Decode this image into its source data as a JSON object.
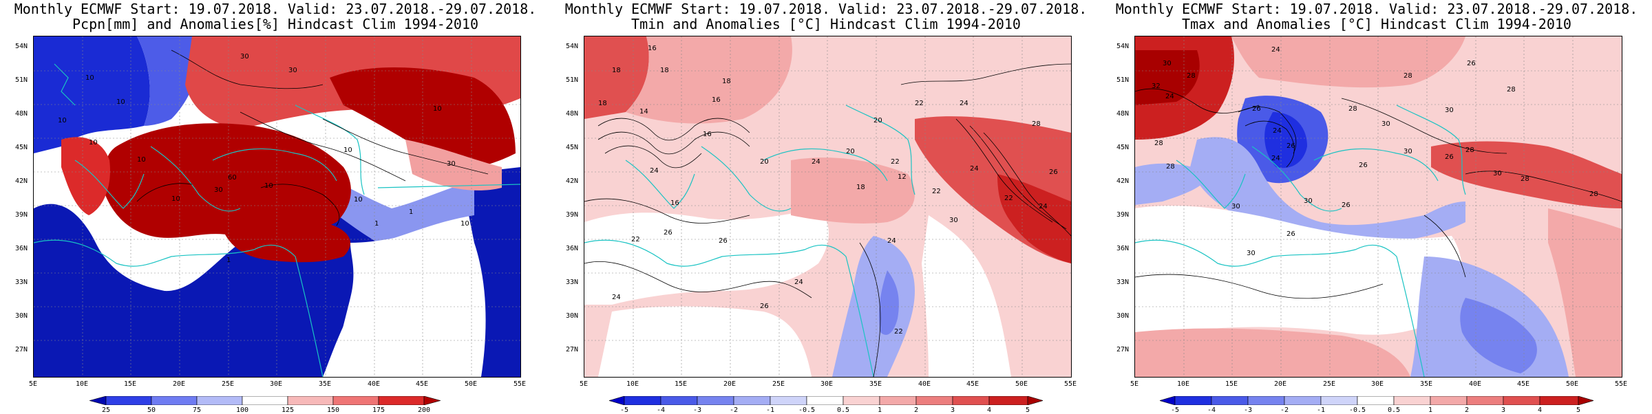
{
  "panels": [
    {
      "id": "pcpn",
      "title_line1": "Monthly ECMWF Start: 19.07.2018. Valid: 23.07.2018.-29.07.2018.",
      "title_line2": "Pcpn[mm] and Anomalies[%] Hindcast Clim 1994-2010",
      "colorbar_ticks": [
        "25",
        "50",
        "75",
        "100",
        "125",
        "150",
        "175",
        "200"
      ],
      "colorbar_colors": [
        "#0008b0",
        "#2e3fe6",
        "#6f7cf2",
        "#b3bbf7",
        "#ffffff",
        "#f7b9b9",
        "#ef7575",
        "#dc2a2a",
        "#b00000"
      ],
      "contour_labels": [
        "30",
        "10",
        "30",
        "10",
        "10",
        "10",
        "10",
        "30",
        "10",
        "60",
        "30",
        "10",
        "10",
        "10",
        "10",
        "1",
        "1",
        "1",
        "10"
      ]
    },
    {
      "id": "tmin",
      "title_line1": "Monthly ECMWF Start: 19.07.2018. Valid: 23.07.2018.-29.07.2018.",
      "title_line2": "Tmin and Anomalies [°C] Hindcast Clim 1994-2010",
      "colorbar_ticks": [
        "-5",
        "-4",
        "-3",
        "-2",
        "-1",
        "-0.5",
        "0.5",
        "1",
        "2",
        "3",
        "4",
        "5"
      ],
      "colorbar_colors": [
        "#0000c8",
        "#1f2fe0",
        "#4a5ae8",
        "#7683ef",
        "#a4adf4",
        "#cfd4f9",
        "#ffffff",
        "#f9d2d2",
        "#f3a9a9",
        "#ec7e7e",
        "#e05050",
        "#cc2020",
        "#a80000"
      ],
      "contour_labels": [
        "16",
        "18",
        "18",
        "18",
        "16",
        "14",
        "18",
        "20",
        "22",
        "24",
        "16",
        "20",
        "24",
        "22",
        "20",
        "24",
        "12",
        "18",
        "16",
        "26",
        "22",
        "24",
        "26",
        "24",
        "30",
        "22",
        "24",
        "28",
        "22",
        "26",
        "24",
        "22",
        "26",
        "24"
      ]
    },
    {
      "id": "tmax",
      "title_line1": "Monthly ECMWF Start: 19.07.2018. Valid: 23.07.2018.-29.07.2018.",
      "title_line2": "Tmax and Anomalies [°C] Hindcast Clim 1994-2010",
      "colorbar_ticks": [
        "-5",
        "-4",
        "-3",
        "-2",
        "-1",
        "-0.5",
        "0.5",
        "1",
        "2",
        "3",
        "4",
        "5"
      ],
      "colorbar_colors": [
        "#0000c8",
        "#1f2fe0",
        "#4a5ae8",
        "#7683ef",
        "#a4adf4",
        "#cfd4f9",
        "#ffffff",
        "#f9d2d2",
        "#f3a9a9",
        "#ec7e7e",
        "#e05050",
        "#cc2020",
        "#a80000"
      ],
      "contour_labels": [
        "24",
        "30",
        "28",
        "26",
        "32",
        "28",
        "24",
        "28",
        "30",
        "30",
        "28",
        "26",
        "24",
        "26",
        "24",
        "28",
        "30",
        "26",
        "28",
        "26",
        "30",
        "28",
        "26",
        "30",
        "26",
        "28",
        "30",
        "28",
        "30"
      ]
    }
  ],
  "lat_labels": [
    "54N",
    "51N",
    "48N",
    "45N",
    "42N",
    "39N",
    "36N",
    "33N",
    "30N",
    "27N"
  ],
  "lon_labels": [
    "5E",
    "10E",
    "15E",
    "20E",
    "25E",
    "30E",
    "35E",
    "40E",
    "45E",
    "50E",
    "55E"
  ],
  "colors": {
    "coastline": "#19c3c3",
    "contour": "#000000",
    "frame": "#000000"
  }
}
